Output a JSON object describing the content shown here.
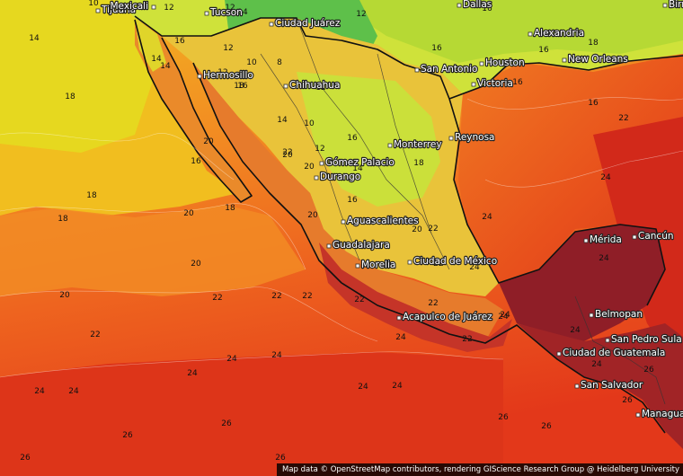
{
  "colors": {
    "ocean_warm": "#e8481c",
    "ocean_hot": "#d22a16",
    "ocean_mid": "#f06d1f",
    "ocean_cool": "#f39a22",
    "yellow_band": "#f3c21c",
    "yellow_light": "#e8dd1e",
    "lime": "#b9dc30",
    "green": "#5dc14a",
    "green_dark": "#2f9e3f",
    "land_orange": "#e77b2a",
    "land_red": "#c33a2a",
    "land_darkred": "#8e1b25",
    "border_line": "#111111"
  },
  "cities": [
    {
      "name": "Tijuana"
    },
    {
      "name": "Mexicali"
    },
    {
      "name": "Tucson"
    },
    {
      "name": "Dallas"
    },
    {
      "name": "Birm"
    },
    {
      "name": "Ciudad Juárez"
    },
    {
      "name": "Alexandria"
    },
    {
      "name": "Hermosillo"
    },
    {
      "name": "San Antonio"
    },
    {
      "name": "Houston"
    },
    {
      "name": "New Orleans"
    },
    {
      "name": "Chihuahua"
    },
    {
      "name": "Victoria"
    },
    {
      "name": "Monterrey"
    },
    {
      "name": "Reynosa"
    },
    {
      "name": "Gómez Palacio"
    },
    {
      "name": "Durango"
    },
    {
      "name": "Aguascalientes"
    },
    {
      "name": "Guadalajara"
    },
    {
      "name": "Morelia"
    },
    {
      "name": "Ciudad de México"
    },
    {
      "name": "Mérida"
    },
    {
      "name": "Cancún"
    },
    {
      "name": "Acapulco de Juárez"
    },
    {
      "name": "Belmopan"
    },
    {
      "name": "San Pedro Sula"
    },
    {
      "name": "Ciudad de Guatemala"
    },
    {
      "name": "San Salvador"
    },
    {
      "name": "Managua"
    }
  ],
  "contour_labels": [
    "14",
    "10",
    "12",
    "12",
    "14",
    "14",
    "12",
    "14",
    "16",
    "12",
    "12",
    "10",
    "8",
    "12",
    "16",
    "16",
    "18",
    "16",
    "18",
    "10",
    "14",
    "16",
    "16",
    "18",
    "20",
    "20",
    "18",
    "16",
    "20",
    "16",
    "12",
    "14",
    "16",
    "20",
    "22",
    "22",
    "16",
    "18",
    "20",
    "22",
    "18",
    "20",
    "18",
    "22",
    "22",
    "24",
    "24",
    "22",
    "20",
    "22",
    "24",
    "24",
    "22",
    "22",
    "24",
    "24",
    "24",
    "24",
    "24",
    "24",
    "24",
    "24",
    "26",
    "26",
    "26",
    "26",
    "26",
    "24",
    "24",
    "22",
    "20",
    "22",
    "22",
    "24",
    "26",
    "26",
    "26",
    "24"
  ],
  "attribution": "Map data © OpenStreetMap contributors, rendering GIScience Research Group @ Heidelberg University"
}
